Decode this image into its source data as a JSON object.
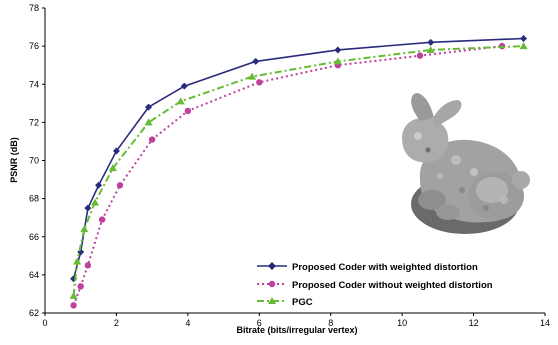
{
  "chart_data": {
    "type": "line",
    "xlabel": "Bitrate (bits/irregular vertex)",
    "ylabel": "PSNR (dB)",
    "xlim": [
      0,
      14
    ],
    "ylim": [
      62,
      78
    ],
    "xticks": [
      0,
      2,
      4,
      6,
      8,
      10,
      12,
      14
    ],
    "yticks": [
      62,
      64,
      66,
      68,
      70,
      72,
      74,
      76,
      78
    ],
    "grid": false,
    "legend_position": "bottom-right",
    "series": [
      {
        "name": "Proposed Coder with weighted distortion",
        "color": "#2b2b7e",
        "dash": "solid",
        "marker": "diamond",
        "x": [
          0.8,
          1.0,
          1.2,
          1.5,
          2.0,
          2.9,
          3.9,
          5.9,
          8.2,
          10.8,
          13.4
        ],
        "y": [
          63.8,
          65.2,
          67.5,
          68.7,
          70.5,
          72.8,
          73.9,
          75.2,
          75.8,
          76.2,
          76.4
        ]
      },
      {
        "name": "Proposed Coder without weighted distortion",
        "color": "#c040a0",
        "dash": "dotted",
        "marker": "circle",
        "x": [
          0.8,
          1.0,
          1.2,
          1.6,
          2.1,
          3.0,
          4.0,
          6.0,
          8.2,
          10.5,
          12.8
        ],
        "y": [
          62.4,
          63.4,
          64.5,
          66.9,
          68.7,
          71.1,
          72.6,
          74.1,
          75.0,
          75.5,
          76.0
        ]
      },
      {
        "name": "PGC",
        "color": "#66bb33",
        "dash": "dashdot",
        "marker": "triangle",
        "x": [
          0.8,
          0.9,
          1.1,
          1.4,
          1.9,
          2.9,
          3.8,
          5.8,
          8.2,
          10.8,
          13.4
        ],
        "y": [
          62.9,
          64.7,
          66.4,
          67.8,
          69.6,
          72.0,
          73.1,
          74.4,
          75.2,
          75.8,
          76.0
        ]
      }
    ]
  },
  "figure": {
    "inset_image": "stanford-bunny-render",
    "inset_colors": {
      "body": "#a0a0a0",
      "shadow": "#5a5a5a",
      "highlight": "#d8d8d8"
    }
  }
}
